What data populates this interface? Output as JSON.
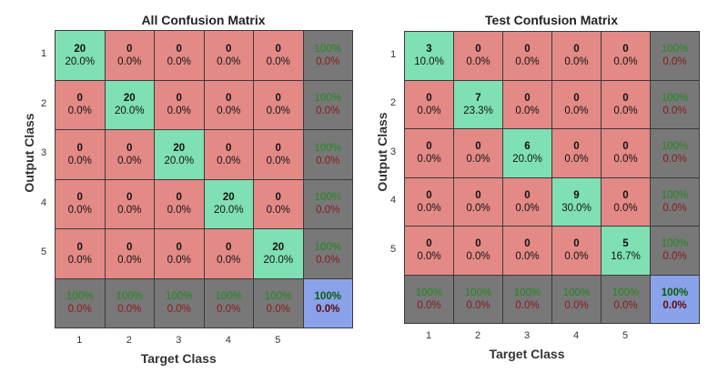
{
  "chart_data": [
    {
      "type": "heatmap",
      "title": "All Confusion Matrix",
      "xlabel": "Target Class",
      "ylabel": "Output Class",
      "classes": [
        "1",
        "2",
        "3",
        "4",
        "5"
      ],
      "counts": [
        [
          20,
          0,
          0,
          0,
          0
        ],
        [
          0,
          20,
          0,
          0,
          0
        ],
        [
          0,
          0,
          20,
          0,
          0
        ],
        [
          0,
          0,
          0,
          20,
          0
        ],
        [
          0,
          0,
          0,
          0,
          20
        ]
      ],
      "percents": [
        [
          "20.0%",
          "0.0%",
          "0.0%",
          "0.0%",
          "0.0%"
        ],
        [
          "0.0%",
          "20.0%",
          "0.0%",
          "0.0%",
          "0.0%"
        ],
        [
          "0.0%",
          "0.0%",
          "20.0%",
          "0.0%",
          "0.0%"
        ],
        [
          "0.0%",
          "0.0%",
          "0.0%",
          "20.0%",
          "0.0%"
        ],
        [
          "0.0%",
          "0.0%",
          "0.0%",
          "0.0%",
          "20.0%"
        ]
      ],
      "row_summary": [
        [
          "100%",
          "0.0%"
        ],
        [
          "100%",
          "0.0%"
        ],
        [
          "100%",
          "0.0%"
        ],
        [
          "100%",
          "0.0%"
        ],
        [
          "100%",
          "0.0%"
        ]
      ],
      "col_summary": [
        [
          "100%",
          "0.0%"
        ],
        [
          "100%",
          "0.0%"
        ],
        [
          "100%",
          "0.0%"
        ],
        [
          "100%",
          "0.0%"
        ],
        [
          "100%",
          "0.0%"
        ]
      ],
      "total": [
        "100%",
        "0.0%"
      ]
    },
    {
      "type": "heatmap",
      "title": "Test Confusion Matrix",
      "xlabel": "Target Class",
      "ylabel": "Output Class",
      "classes": [
        "1",
        "2",
        "3",
        "4",
        "5"
      ],
      "counts": [
        [
          3,
          0,
          0,
          0,
          0
        ],
        [
          0,
          7,
          0,
          0,
          0
        ],
        [
          0,
          0,
          6,
          0,
          0
        ],
        [
          0,
          0,
          0,
          9,
          0
        ],
        [
          0,
          0,
          0,
          0,
          5
        ]
      ],
      "percents": [
        [
          "10.0%",
          "0.0%",
          "0.0%",
          "0.0%",
          "0.0%"
        ],
        [
          "0.0%",
          "23.3%",
          "0.0%",
          "0.0%",
          "0.0%"
        ],
        [
          "0.0%",
          "0.0%",
          "20.0%",
          "0.0%",
          "0.0%"
        ],
        [
          "0.0%",
          "0.0%",
          "0.0%",
          "30.0%",
          "0.0%"
        ],
        [
          "0.0%",
          "0.0%",
          "0.0%",
          "0.0%",
          "16.7%"
        ]
      ],
      "row_summary": [
        [
          "100%",
          "0.0%"
        ],
        [
          "100%",
          "0.0%"
        ],
        [
          "100%",
          "0.0%"
        ],
        [
          "100%",
          "0.0%"
        ],
        [
          "100%",
          "0.0%"
        ]
      ],
      "col_summary": [
        [
          "100%",
          "0.0%"
        ],
        [
          "100%",
          "0.0%"
        ],
        [
          "100%",
          "0.0%"
        ],
        [
          "100%",
          "0.0%"
        ],
        [
          "100%",
          "0.0%"
        ]
      ],
      "total": [
        "100%",
        "0.0%"
      ]
    }
  ]
}
